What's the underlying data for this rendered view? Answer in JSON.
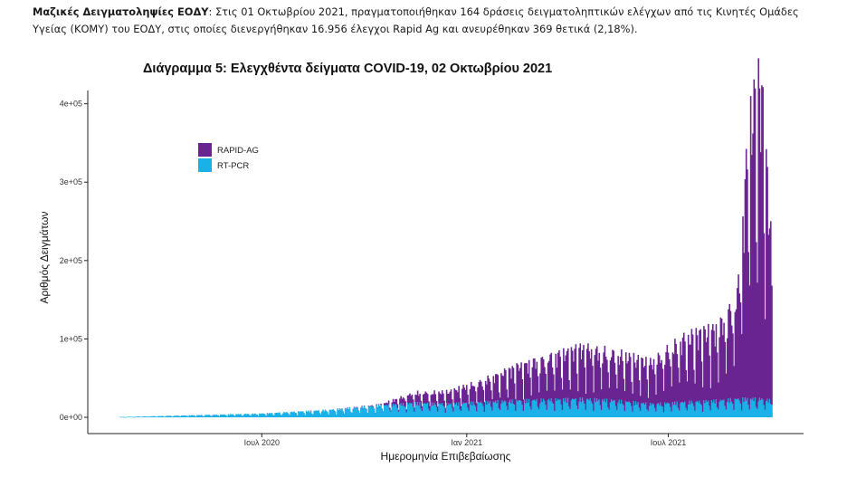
{
  "paragraph": {
    "bold_lead": "Μαζικές Δειγματοληψίες ΕΟΔΥ",
    "line1_rest": ": Στις 01 Οκτωβρίου 2021, πραγματοποιήθηκαν 164 δράσεις δειγματοληπτικών ελέγχων από τις Κινητές Ομάδες",
    "line2": "Υγείας (ΚΟΜΥ) του ΕΟΔΥ, στις οποίες διενεργήθηκαν 16.956 έλεγχοι Rapid Ag και ανευρέθηκαν 369 θετικά (2,18%)."
  },
  "chart_data": {
    "type": "bar",
    "stacked": true,
    "title": "Διάγραμμα 5: Ελεγχθέντα δείγματα COVID-19, 02 Οκτωβρίου 2021",
    "xlabel": "Ημερομηνία Επιβεβαίωσης",
    "ylabel": "Αριθμός Δειγμάτων",
    "ylim": [
      0,
      410000
    ],
    "y_ticks": [
      {
        "value": 0,
        "label": "0e+00"
      },
      {
        "value": 100000,
        "label": "1e+05"
      },
      {
        "value": 200000,
        "label": "2e+05"
      },
      {
        "value": 300000,
        "label": "3e+05"
      },
      {
        "value": 400000,
        "label": "4e+05"
      }
    ],
    "x_range": [
      "2020-02-25",
      "2021-10-02"
    ],
    "x_ticks": [
      {
        "date": "2020-07-01",
        "label": "Ιουλ 2020"
      },
      {
        "date": "2021-01-01",
        "label": "Ιαν 2021"
      },
      {
        "date": "2021-07-01",
        "label": "Ιουλ 2021"
      }
    ],
    "legend_position": "top-left",
    "grid": false,
    "series": [
      {
        "name": "RAPID-AG",
        "color": "#6a2491"
      },
      {
        "name": "RT-PCR",
        "color": "#1ab0e8"
      }
    ],
    "approx_points": [
      {
        "date": "2020-03-01",
        "rt_pcr": 500,
        "rapid_ag": 0
      },
      {
        "date": "2020-05-01",
        "rt_pcr": 2500,
        "rapid_ag": 0
      },
      {
        "date": "2020-07-01",
        "rt_pcr": 4500,
        "rapid_ag": 0
      },
      {
        "date": "2020-09-01",
        "rt_pcr": 9000,
        "rapid_ag": 0
      },
      {
        "date": "2020-10-15",
        "rt_pcr": 14000,
        "rapid_ag": 1000
      },
      {
        "date": "2020-11-15",
        "rt_pcr": 17000,
        "rapid_ag": 12000
      },
      {
        "date": "2020-12-15",
        "rt_pcr": 16000,
        "rapid_ag": 14000
      },
      {
        "date": "2021-01-15",
        "rt_pcr": 18000,
        "rapid_ag": 25000
      },
      {
        "date": "2021-02-15",
        "rt_pcr": 20000,
        "rapid_ag": 40000
      },
      {
        "date": "2021-03-15",
        "rt_pcr": 21000,
        "rapid_ag": 50000
      },
      {
        "date": "2021-04-15",
        "rt_pcr": 22000,
        "rapid_ag": 60000
      },
      {
        "date": "2021-05-15",
        "rt_pcr": 20000,
        "rapid_ag": 55000
      },
      {
        "date": "2021-06-15",
        "rt_pcr": 16000,
        "rapid_ag": 48000
      },
      {
        "date": "2021-07-15",
        "rt_pcr": 18000,
        "rapid_ag": 75000
      },
      {
        "date": "2021-08-15",
        "rt_pcr": 20000,
        "rapid_ag": 85000
      },
      {
        "date": "2021-09-01",
        "rt_pcr": 22000,
        "rapid_ag": 120000
      },
      {
        "date": "2021-09-12",
        "rt_pcr": 22000,
        "rapid_ag": 325000
      },
      {
        "date": "2021-09-22",
        "rt_pcr": 22000,
        "rapid_ag": 375000
      },
      {
        "date": "2021-10-01",
        "rt_pcr": 20000,
        "rapid_ag": 195000
      }
    ]
  }
}
